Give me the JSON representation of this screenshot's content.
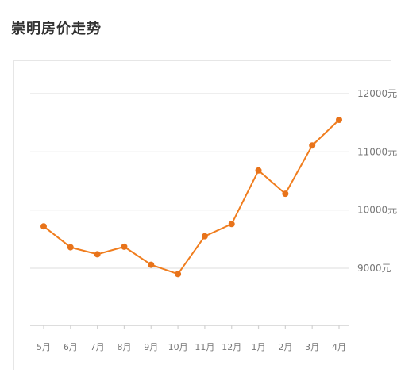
{
  "page": {
    "title": "崇明房价走势"
  },
  "chart_data": {
    "type": "line",
    "categories": [
      "5月",
      "6月",
      "7月",
      "8月",
      "9月",
      "10月",
      "11月",
      "12月",
      "1月",
      "2月",
      "3月",
      "4月"
    ],
    "series": [
      {
        "values": [
          9720,
          9360,
          9240,
          9370,
          9060,
          8900,
          9550,
          9760,
          10680,
          10280,
          11110,
          11550
        ]
      }
    ],
    "title": "",
    "xlabel": "",
    "ylabel": "",
    "y_ticks": [
      9000,
      10000,
      11000,
      12000
    ],
    "y_tick_labels": [
      "9000元",
      "10000元",
      "11000元",
      "12000元"
    ],
    "ylim": [
      8000,
      12000
    ],
    "grid": true,
    "legend": "none",
    "colors": {
      "line": "#f07d1e",
      "marker": "#e8731a",
      "grid": "#e3e3e3"
    }
  }
}
